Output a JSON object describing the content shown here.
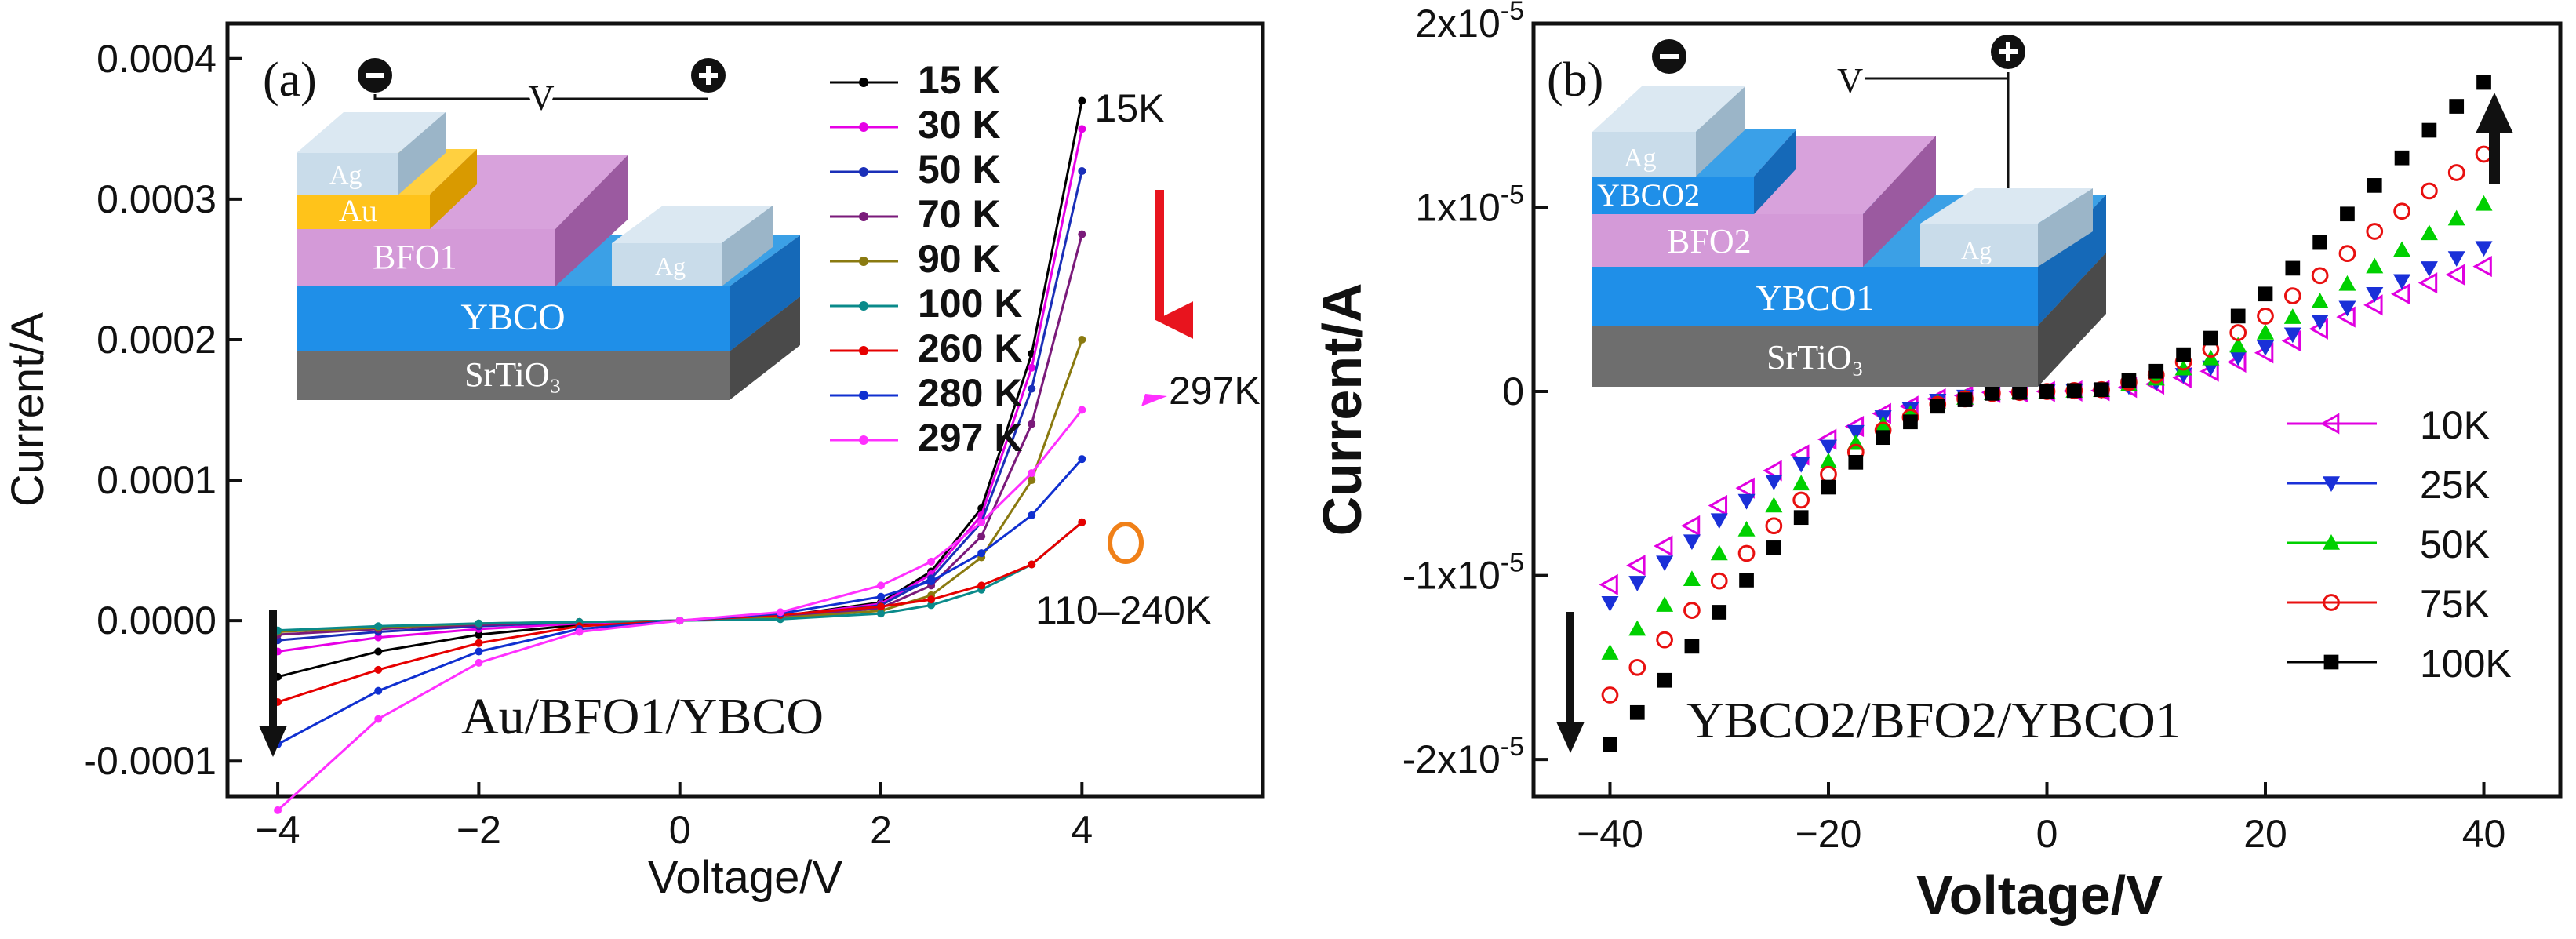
{
  "chart_data": [
    {
      "panel": "(a)",
      "type": "line",
      "title": "",
      "xlabel": "Voltage/V",
      "ylabel": "Current/A",
      "xlim": [
        -4.5,
        5.8
      ],
      "ylim": [
        -0.000125,
        0.000425
      ],
      "xticks": [
        -4,
        -2,
        0,
        2,
        4
      ],
      "yticks": [
        -0.0001,
        0.0,
        0.0001,
        0.0002,
        0.0003,
        0.0004
      ],
      "ytick_labels": [
        "-0.0001",
        "0.0000",
        "0.0001",
        "0.0002",
        "0.0003",
        "0.0004"
      ],
      "x": [
        -4,
        -3,
        -2,
        -1,
        0,
        1,
        2,
        2.5,
        3,
        3.5,
        4
      ],
      "series": [
        {
          "name": "15 K",
          "color": "#000000",
          "values": [
            -4e-05,
            -2.2e-05,
            -1e-05,
            -3e-06,
            0,
            3e-06,
            1.3e-05,
            3.5e-05,
            8e-05,
            0.00019,
            0.00037
          ]
        },
        {
          "name": "30 K",
          "color": "#e600e6",
          "values": [
            -2.2e-05,
            -1.2e-05,
            -6e-06,
            -2e-06,
            0,
            3e-06,
            1.2e-05,
            3.3e-05,
            7.5e-05,
            0.00018,
            0.00035
          ]
        },
        {
          "name": "50 K",
          "color": "#1a2fb8",
          "values": [
            -1.4e-05,
            -8e-06,
            -4e-06,
            -1e-06,
            0,
            2e-06,
            1.1e-05,
            3e-05,
            7e-05,
            0.000165,
            0.00032
          ]
        },
        {
          "name": "70 K",
          "color": "#7a1a7a",
          "values": [
            -1e-05,
            -6e-06,
            -3e-06,
            -1e-06,
            0,
            2e-06,
            9e-06,
            2.5e-05,
            6e-05,
            0.00014,
            0.000275
          ]
        },
        {
          "name": "90 K",
          "color": "#8a7a10",
          "values": [
            -8e-06,
            -5e-06,
            -2e-06,
            -1e-06,
            0,
            2e-06,
            7e-06,
            1.8e-05,
            4.5e-05,
            0.0001,
            0.0002
          ]
        },
        {
          "name": "100 K",
          "color": "#0a8a8a",
          "values": [
            -7e-06,
            -4e-06,
            -2e-06,
            -1e-06,
            0,
            1e-06,
            5e-06,
            1.1e-05,
            2.2e-05,
            4e-05,
            7e-05
          ]
        },
        {
          "name": "260 K",
          "color": "#e60000",
          "values": [
            -5.8e-05,
            -3.5e-05,
            -1.6e-05,
            -4e-06,
            0,
            4e-06,
            1e-05,
            1.5e-05,
            2.5e-05,
            4e-05,
            7e-05
          ]
        },
        {
          "name": "280 K",
          "color": "#1030d0",
          "values": [
            -8.8e-05,
            -5e-05,
            -2.2e-05,
            -6e-06,
            0,
            5e-06,
            1.7e-05,
            2.8e-05,
            4.8e-05,
            7.5e-05,
            0.000115
          ]
        },
        {
          "name": "297 K",
          "color": "#ff30ff",
          "values": [
            -0.000135,
            -7e-05,
            -3e-05,
            -8e-06,
            0,
            6e-06,
            2.5e-05,
            4.2e-05,
            7e-05,
            0.000105,
            0.00015
          ]
        }
      ],
      "annotations": [
        "15K",
        "297K",
        "110–240K",
        "Au/BFO1/YBCO"
      ],
      "inset": {
        "label": "(a)",
        "voltage": "V",
        "layers": [
          "Ag",
          "Au",
          "BFO1",
          "Ag",
          "YBCO",
          "SrTiO₃"
        ]
      }
    },
    {
      "panel": "(b)",
      "type": "scatter",
      "title": "",
      "xlabel": "Voltage/V",
      "ylabel": "Current/A",
      "xlim": [
        -47,
        47
      ],
      "ylim": [
        -2.2e-05,
        2e-05
      ],
      "xticks": [
        -40,
        -20,
        0,
        20,
        40
      ],
      "yticks": [
        -2e-05,
        -1e-05,
        0,
        1e-05,
        2e-05
      ],
      "ytick_mantissa": [
        "-2x10",
        "-1x10",
        "0",
        "1x10",
        "2x10"
      ],
      "ytick_exponent": "-5",
      "x": [
        -40,
        -35,
        -30,
        -25,
        -20,
        -15,
        -10,
        -5,
        0,
        5,
        10,
        15,
        20,
        25,
        30,
        35,
        40
      ],
      "series": [
        {
          "name": "10K",
          "color": "#e000e0",
          "marker": "tri-left-open",
          "values": [
            -1.05e-05,
            -8.4e-06,
            -6.2e-06,
            -4.3e-06,
            -2.6e-06,
            -1.2e-06,
            -4e-07,
            -5e-08,
            0,
            5e-08,
            4e-07,
            1.1e-06,
            2.1e-06,
            3.4e-06,
            4.7e-06,
            5.9e-06,
            6.8e-06
          ]
        },
        {
          "name": "25K",
          "color": "#1a30d8",
          "marker": "tri-down",
          "values": [
            -1.15e-05,
            -9.3e-06,
            -7e-06,
            -4.9e-06,
            -3e-06,
            -1.4e-06,
            -5e-07,
            -6e-08,
            0,
            6e-08,
            5e-07,
            1.3e-06,
            2.4e-06,
            3.8e-06,
            5.3e-06,
            6.7e-06,
            7.8e-06
          ]
        },
        {
          "name": "50K",
          "color": "#00d000",
          "marker": "tri-up",
          "values": [
            -1.42e-05,
            -1.16e-05,
            -8.8e-06,
            -6.2e-06,
            -3.8e-06,
            -1.8e-06,
            -6e-07,
            -8e-08,
            0,
            8e-08,
            7e-07,
            1.8e-06,
            3.2e-06,
            4.9e-06,
            6.8e-06,
            8.6e-06,
            1.02e-05
          ]
        },
        {
          "name": "75K",
          "color": "#e81010",
          "marker": "circle-open",
          "values": [
            -1.65e-05,
            -1.35e-05,
            -1.03e-05,
            -7.3e-06,
            -4.5e-06,
            -2.1e-06,
            -7e-07,
            -1e-07,
            0,
            1e-07,
            9e-07,
            2.3e-06,
            4.1e-06,
            6.3e-06,
            8.7e-06,
            1.09e-05,
            1.29e-05
          ]
        },
        {
          "name": "100K",
          "color": "#000000",
          "marker": "square",
          "values": [
            -1.92e-05,
            -1.57e-05,
            -1.2e-05,
            -8.5e-06,
            -5.2e-06,
            -2.5e-06,
            -8e-07,
            -1e-07,
            0,
            1e-07,
            1.1e-06,
            2.9e-06,
            5.3e-06,
            8.1e-06,
            1.12e-05,
            1.42e-05,
            1.68e-05
          ]
        }
      ],
      "annotations": [
        "YBCO2/BFO2/YBCO1"
      ],
      "inset": {
        "label": "(b)",
        "voltage": "V",
        "layers": [
          "Ag",
          "YBCO2",
          "BFO2",
          "Ag",
          "YBCO1",
          "SrTiO₃"
        ]
      }
    }
  ]
}
